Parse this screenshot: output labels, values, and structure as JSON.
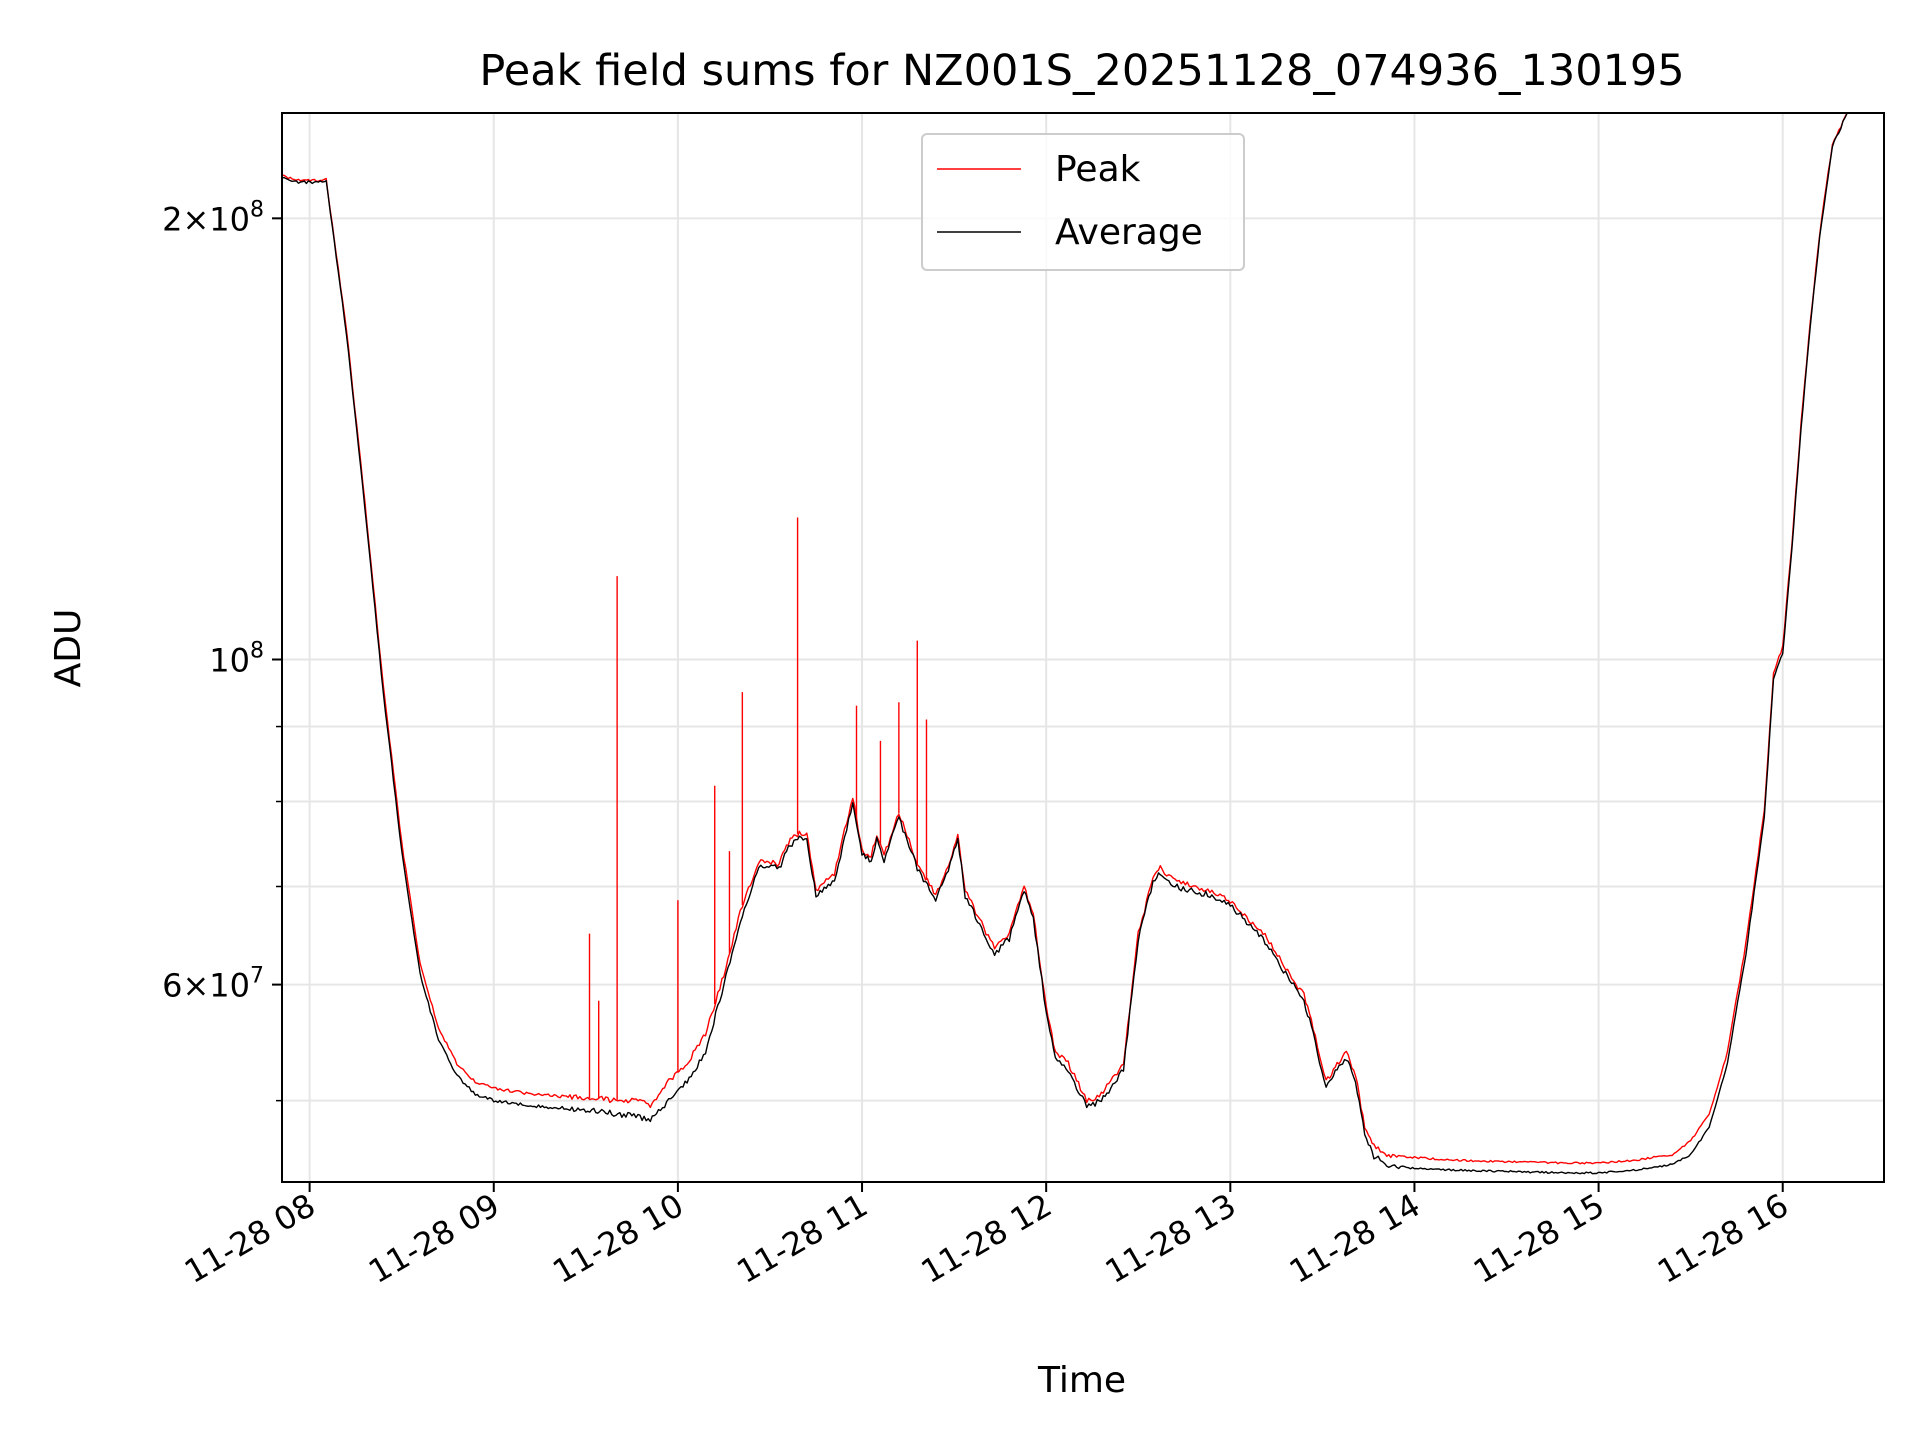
{
  "chart_data": {
    "type": "line",
    "title": "Peak field sums for NZ001S_20251128_074936_130195",
    "xlabel": "Time",
    "ylabel": "ADU",
    "yscale": "log",
    "ylim": [
      44000000,
      236000000
    ],
    "xlim": [
      7.85,
      16.55
    ],
    "grid": true,
    "legend_position": "upper-center",
    "x_ticks": [
      {
        "value": 8,
        "label": "11-28 08"
      },
      {
        "value": 9,
        "label": "11-28 09"
      },
      {
        "value": 10,
        "label": "11-28 10"
      },
      {
        "value": 11,
        "label": "11-28 11"
      },
      {
        "value": 12,
        "label": "11-28 12"
      },
      {
        "value": 13,
        "label": "11-28 13"
      },
      {
        "value": 14,
        "label": "11-28 14"
      },
      {
        "value": 15,
        "label": "11-28 15"
      },
      {
        "value": 16,
        "label": "11-28 16"
      }
    ],
    "y_ticks_major": [
      {
        "value": 60000000,
        "base": "6",
        "exp": "7",
        "has_mult": true
      },
      {
        "value": 100000000,
        "base": "10",
        "exp": "8",
        "has_mult": false
      },
      {
        "value": 200000000,
        "base": "2",
        "exp": "8",
        "has_mult": true
      }
    ],
    "y_ticks_minor": [
      50000000,
      70000000,
      80000000,
      90000000
    ],
    "series": [
      {
        "name": "Peak",
        "color": "#ff0000",
        "points": [
          [
            7.85,
            214000000
          ],
          [
            7.95,
            212000000
          ],
          [
            8.09,
            212500000
          ],
          [
            8.2,
            168000000
          ],
          [
            8.3,
            128000000
          ],
          [
            8.4,
            96000000
          ],
          [
            8.5,
            75000000
          ],
          [
            8.6,
            62000000
          ],
          [
            8.7,
            56000000
          ],
          [
            8.8,
            53000000
          ],
          [
            8.9,
            51500000
          ],
          [
            9.0,
            51000000
          ],
          [
            9.2,
            50500000
          ],
          [
            9.5,
            50200000
          ],
          [
            9.75,
            50000000
          ],
          [
            9.85,
            49700000
          ],
          [
            9.95,
            51500000
          ],
          [
            10.05,
            53000000
          ],
          [
            10.15,
            55500000
          ],
          [
            10.25,
            61000000
          ],
          [
            10.35,
            68000000
          ],
          [
            10.45,
            73000000
          ],
          [
            10.55,
            72500000
          ],
          [
            10.6,
            75000000
          ],
          [
            10.65,
            76000000
          ],
          [
            10.7,
            76000000
          ],
          [
            10.75,
            69500000
          ],
          [
            10.85,
            71500000
          ],
          [
            10.95,
            80500000
          ],
          [
            11.0,
            74000000
          ],
          [
            11.05,
            73500000
          ],
          [
            11.08,
            76000000
          ],
          [
            11.12,
            73500000
          ],
          [
            11.2,
            78500000
          ],
          [
            11.3,
            72500000
          ],
          [
            11.4,
            69000000
          ],
          [
            11.48,
            73000000
          ],
          [
            11.52,
            76000000
          ],
          [
            11.56,
            69500000
          ],
          [
            11.65,
            66000000
          ],
          [
            11.72,
            63500000
          ],
          [
            11.8,
            65000000
          ],
          [
            11.88,
            70000000
          ],
          [
            11.93,
            67000000
          ],
          [
            12.0,
            58000000
          ],
          [
            12.05,
            54000000
          ],
          [
            12.12,
            53000000
          ],
          [
            12.22,
            50000000
          ],
          [
            12.3,
            50500000
          ],
          [
            12.35,
            51500000
          ],
          [
            12.42,
            53000000
          ],
          [
            12.5,
            65000000
          ],
          [
            12.58,
            71000000
          ],
          [
            12.62,
            72000000
          ],
          [
            12.7,
            70500000
          ],
          [
            12.8,
            70000000
          ],
          [
            12.9,
            69500000
          ],
          [
            13.0,
            68500000
          ],
          [
            13.1,
            66500000
          ],
          [
            13.2,
            64500000
          ],
          [
            13.3,
            61500000
          ],
          [
            13.4,
            59000000
          ],
          [
            13.45,
            56000000
          ],
          [
            13.52,
            51500000
          ],
          [
            13.58,
            53000000
          ],
          [
            13.63,
            54000000
          ],
          [
            13.68,
            52000000
          ],
          [
            13.73,
            48000000
          ],
          [
            13.78,
            46500000
          ],
          [
            13.85,
            46000000
          ],
          [
            14.0,
            45800000
          ],
          [
            14.2,
            45600000
          ],
          [
            14.5,
            45500000
          ],
          [
            14.8,
            45400000
          ],
          [
            15.0,
            45400000
          ],
          [
            15.2,
            45600000
          ],
          [
            15.4,
            46000000
          ],
          [
            15.5,
            47000000
          ],
          [
            15.6,
            49000000
          ],
          [
            15.7,
            54000000
          ],
          [
            15.8,
            64000000
          ],
          [
            15.9,
            79000000
          ],
          [
            15.95,
            98000000
          ],
          [
            16.0,
            102000000
          ],
          [
            16.05,
            120000000
          ],
          [
            16.1,
            145000000
          ],
          [
            16.15,
            170000000
          ],
          [
            16.2,
            195000000
          ],
          [
            16.27,
            225000000
          ],
          [
            16.35,
            236000000
          ]
        ],
        "spikes": [
          [
            9.52,
            65000000
          ],
          [
            9.57,
            58500000
          ],
          [
            9.67,
            114000000
          ],
          [
            10.0,
            68500000
          ],
          [
            10.2,
            82000000
          ],
          [
            10.28,
            74000000
          ],
          [
            10.35,
            95000000
          ],
          [
            10.65,
            125000000
          ],
          [
            10.97,
            93000000
          ],
          [
            11.1,
            88000000
          ],
          [
            11.2,
            93500000
          ],
          [
            11.3,
            103000000
          ],
          [
            11.35,
            91000000
          ]
        ]
      },
      {
        "name": "Average",
        "color": "#000000",
        "points": [
          [
            7.85,
            213500000
          ],
          [
            7.95,
            211500000
          ],
          [
            8.09,
            212000000
          ],
          [
            8.2,
            167000000
          ],
          [
            8.3,
            127000000
          ],
          [
            8.4,
            95000000
          ],
          [
            8.5,
            74000000
          ],
          [
            8.6,
            61000000
          ],
          [
            8.7,
            55000000
          ],
          [
            8.8,
            52000000
          ],
          [
            8.9,
            50500000
          ],
          [
            9.0,
            50000000
          ],
          [
            9.2,
            49600000
          ],
          [
            9.5,
            49300000
          ],
          [
            9.75,
            48800000
          ],
          [
            9.85,
            48500000
          ],
          [
            9.95,
            50000000
          ],
          [
            10.05,
            51500000
          ],
          [
            10.15,
            54000000
          ],
          [
            10.25,
            60000000
          ],
          [
            10.35,
            67000000
          ],
          [
            10.45,
            72500000
          ],
          [
            10.55,
            72000000
          ],
          [
            10.6,
            74500000
          ],
          [
            10.65,
            75500000
          ],
          [
            10.7,
            75500000
          ],
          [
            10.75,
            69000000
          ],
          [
            10.85,
            70500000
          ],
          [
            10.95,
            80000000
          ],
          [
            11.0,
            73500000
          ],
          [
            11.05,
            73000000
          ],
          [
            11.08,
            75500000
          ],
          [
            11.12,
            73000000
          ],
          [
            11.2,
            78000000
          ],
          [
            11.3,
            72000000
          ],
          [
            11.4,
            68500000
          ],
          [
            11.48,
            72500000
          ],
          [
            11.52,
            75500000
          ],
          [
            11.56,
            69000000
          ],
          [
            11.65,
            65500000
          ],
          [
            11.72,
            63000000
          ],
          [
            11.8,
            64500000
          ],
          [
            11.88,
            69500000
          ],
          [
            11.93,
            66500000
          ],
          [
            12.0,
            57500000
          ],
          [
            12.05,
            53500000
          ],
          [
            12.12,
            52500000
          ],
          [
            12.22,
            49500000
          ],
          [
            12.3,
            50000000
          ],
          [
            12.35,
            51000000
          ],
          [
            12.42,
            52500000
          ],
          [
            12.5,
            64500000
          ],
          [
            12.58,
            70500000
          ],
          [
            12.62,
            71500000
          ],
          [
            12.7,
            70000000
          ],
          [
            12.8,
            69500000
          ],
          [
            12.9,
            69000000
          ],
          [
            13.0,
            68000000
          ],
          [
            13.1,
            66000000
          ],
          [
            13.2,
            64000000
          ],
          [
            13.3,
            61000000
          ],
          [
            13.4,
            58500000
          ],
          [
            13.45,
            55500000
          ],
          [
            13.52,
            51000000
          ],
          [
            13.58,
            52500000
          ],
          [
            13.63,
            53500000
          ],
          [
            13.68,
            51500000
          ],
          [
            13.73,
            47500000
          ],
          [
            13.78,
            45800000
          ],
          [
            13.85,
            45300000
          ],
          [
            14.0,
            45000000
          ],
          [
            14.2,
            44900000
          ],
          [
            14.5,
            44800000
          ],
          [
            14.8,
            44700000
          ],
          [
            15.0,
            44700000
          ],
          [
            15.2,
            44900000
          ],
          [
            15.4,
            45300000
          ],
          [
            15.5,
            46000000
          ],
          [
            15.6,
            48000000
          ],
          [
            15.7,
            53000000
          ],
          [
            15.8,
            63000000
          ],
          [
            15.9,
            78000000
          ],
          [
            15.95,
            97000000
          ],
          [
            16.0,
            101000000
          ],
          [
            16.05,
            119000000
          ],
          [
            16.1,
            144000000
          ],
          [
            16.15,
            169000000
          ],
          [
            16.2,
            194000000
          ],
          [
            16.27,
            224000000
          ],
          [
            16.35,
            236000000
          ]
        ],
        "spikes": []
      }
    ]
  }
}
